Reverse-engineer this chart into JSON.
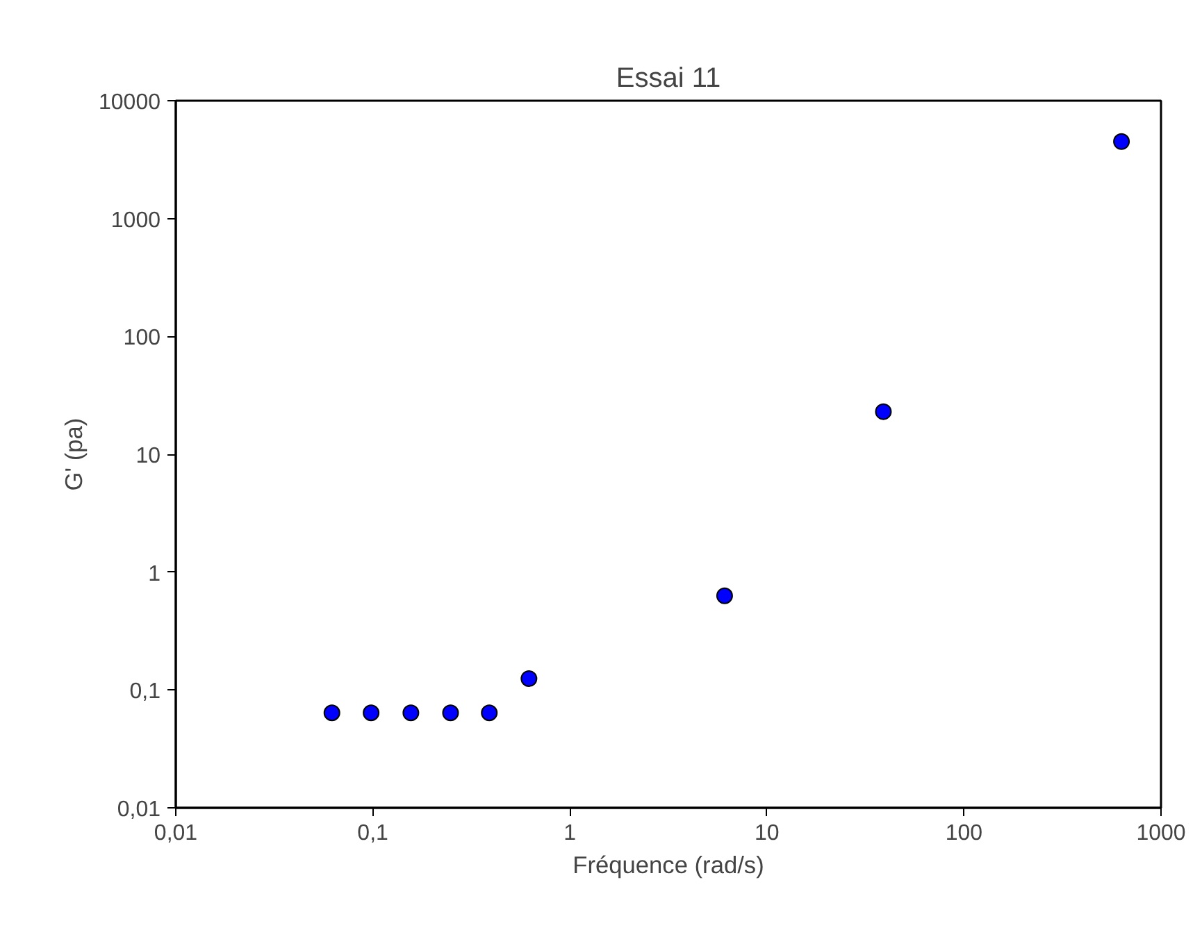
{
  "chart_data": {
    "type": "scatter",
    "title": "Essai 11",
    "xlabel": "Fréquence (rad/s)",
    "ylabel": "G' (pa)",
    "x": [
      0.062,
      0.098,
      0.156,
      0.248,
      0.39,
      0.62,
      6.1,
      39,
      630
    ],
    "series": [
      {
        "color": "#0000ff",
        "values": [
          0.064,
          0.064,
          0.064,
          0.064,
          0.064,
          0.125,
          0.63,
          23,
          4500
        ]
      }
    ],
    "log": "xy",
    "marker": "circle",
    "grid": false,
    "xlim": [
      0.01,
      1000
    ],
    "ylim": [
      0.01,
      10000
    ],
    "xticks": [
      {
        "value": 0.01,
        "label": "0,01"
      },
      {
        "value": 0.1,
        "label": "0,1"
      },
      1,
      10,
      100,
      1000
    ],
    "yticks": [
      {
        "value": 0.01,
        "label": "0,01"
      },
      {
        "value": 0.1,
        "label": "0,1"
      },
      1,
      10,
      100,
      1000,
      10000
    ]
  }
}
